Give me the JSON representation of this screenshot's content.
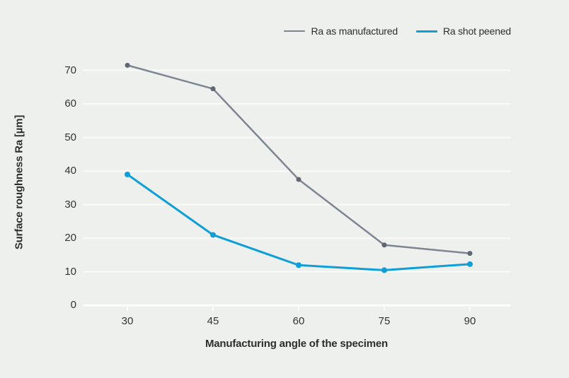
{
  "colors": {
    "background": "#eef0ee",
    "gridline": "#fafbf9",
    "axis_baseline": "#fbfcfb",
    "text": "#2d2d2d",
    "series_gray": "#7d8592",
    "series_blue": "#0f9fd8"
  },
  "chart_data": {
    "type": "line",
    "title": "",
    "xlabel": "Manufacturing angle of the specimen",
    "ylabel": "Surface roughness Ra [µm]",
    "x": [
      30,
      45,
      60,
      75,
      90
    ],
    "xticks": [
      "30",
      "45",
      "60",
      "75",
      "90"
    ],
    "yticks": [
      "0",
      "10",
      "20",
      "30",
      "40",
      "50",
      "60",
      "70"
    ],
    "ytick_values": [
      0,
      10,
      20,
      30,
      40,
      50,
      60,
      70
    ],
    "ylim": [
      0,
      75
    ],
    "grid": "horizontal-white-gridlines",
    "legend_position": "top-right",
    "series": [
      {
        "name": "Ra as manufactured",
        "color": "#7d8592",
        "marker_color": "#5f6772",
        "values": [
          71.5,
          64.5,
          37.5,
          18,
          15.5
        ]
      },
      {
        "name": "Ra shot peened",
        "color": "#0f9fd8",
        "marker_color": "#0f9fd8",
        "values": [
          39,
          21,
          12,
          10.5,
          12.3
        ]
      }
    ]
  }
}
